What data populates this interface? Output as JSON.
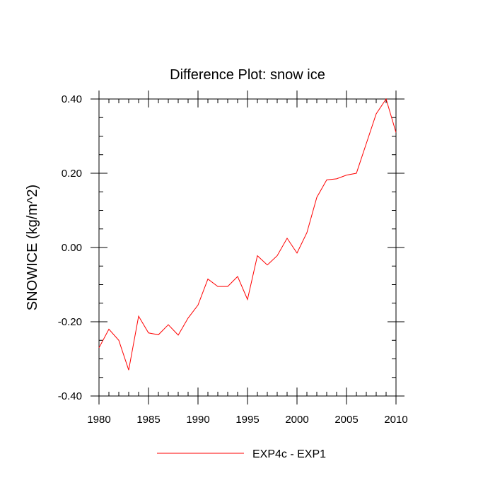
{
  "chart_data": {
    "type": "line",
    "title": "Difference Plot: snow ice",
    "xlabel": "",
    "ylabel": "SNOWICE  (kg/m^2)",
    "xlim": [
      1980,
      2010
    ],
    "ylim": [
      -0.4,
      0.4
    ],
    "xticks": [
      1980,
      1985,
      1990,
      1995,
      2000,
      2005,
      2010
    ],
    "xtick_labels": [
      "1980",
      "1985",
      "1990",
      "1995",
      "2000",
      "2005",
      "2010"
    ],
    "yticks": [
      -0.4,
      -0.2,
      0.0,
      0.2,
      0.4
    ],
    "ytick_labels": [
      "-0.40",
      "-0.20",
      "0.00",
      "0.20",
      "0.40"
    ],
    "grid": false,
    "legend_position": "bottom",
    "series": [
      {
        "name": "EXP4c - EXP1",
        "color": "#ff0000",
        "x": [
          1980,
          1981,
          1982,
          1983,
          1984,
          1985,
          1986,
          1987,
          1988,
          1989,
          1990,
          1991,
          1992,
          1993,
          1994,
          1995,
          1996,
          1997,
          1998,
          1999,
          2000,
          2001,
          2002,
          2003,
          2004,
          2005,
          2006,
          2007,
          2008,
          2009,
          2010
        ],
        "values": [
          -0.27,
          -0.22,
          -0.25,
          -0.33,
          -0.185,
          -0.23,
          -0.235,
          -0.208,
          -0.236,
          -0.19,
          -0.155,
          -0.085,
          -0.105,
          -0.105,
          -0.078,
          -0.14,
          -0.022,
          -0.047,
          -0.022,
          0.025,
          -0.015,
          0.04,
          0.135,
          0.182,
          0.185,
          0.195,
          0.2,
          0.28,
          0.36,
          0.4,
          0.31
        ]
      }
    ]
  }
}
